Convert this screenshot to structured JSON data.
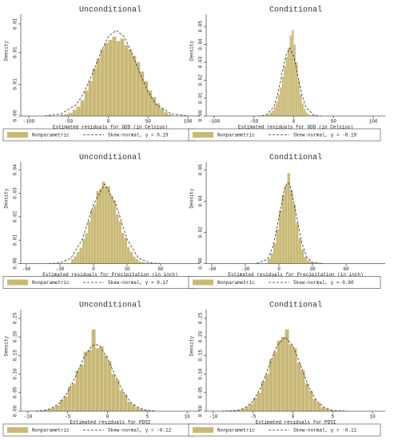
{
  "chart_data": [
    {
      "type": "histogram",
      "title": "Unconditional",
      "xlabel": "Estimated residuals for GDD (in Celsius)",
      "ylabel": "Density",
      "xlim": [
        -110,
        115
      ],
      "xticks": [
        -100,
        -50,
        0,
        50,
        100
      ],
      "ylim": [
        0,
        0.0155
      ],
      "yticks": [
        {
          "value": 0,
          "label": "0.00"
        },
        {
          "value": 0.005,
          "label": "0.01"
        },
        0.01,
        {
          "value": 0.0145,
          "label": "0.01"
        }
      ],
      "histogram": {
        "name": "Nonparametric",
        "color": "#c9b978",
        "bins": [
          -60,
          -55,
          -50,
          -45,
          -40,
          -35,
          -30,
          -25,
          -20,
          -15,
          -10,
          -5,
          0,
          5,
          10,
          15,
          20,
          25,
          30,
          35,
          40,
          45,
          50,
          55,
          60,
          65,
          70,
          75,
          80
        ],
        "values": [
          0.0002,
          0.0003,
          0.0005,
          0.001,
          0.0015,
          0.0025,
          0.004,
          0.0055,
          0.0075,
          0.009,
          0.0105,
          0.0115,
          0.012,
          0.0125,
          0.0118,
          0.0122,
          0.0112,
          0.0105,
          0.0095,
          0.0085,
          0.007,
          0.0055,
          0.004,
          0.003,
          0.002,
          0.0012,
          0.0006,
          0.0003
        ]
      },
      "curve": {
        "name": "Skew-normal, γ = 0.19",
        "color": "#333333",
        "x": [
          -80,
          -60,
          -40,
          -30,
          -20,
          -10,
          0,
          10,
          20,
          30,
          40,
          50,
          60,
          80,
          100
        ],
        "values": [
          2e-05,
          0.0003,
          0.0018,
          0.0038,
          0.0066,
          0.0098,
          0.0125,
          0.0135,
          0.0125,
          0.0098,
          0.0066,
          0.0038,
          0.0018,
          0.0003,
          2e-05
        ]
      }
    },
    {
      "type": "histogram",
      "title": "Conditional",
      "xlabel": "Estimated residuals for GDD (in Celsius)",
      "ylabel": "Density",
      "xlim": [
        -110,
        115
      ],
      "xticks": [
        -100,
        -50,
        0,
        50,
        100
      ],
      "ylim": [
        0,
        0.055
      ],
      "yticks": [
        {
          "value": 0,
          "label": "0.00"
        },
        0.01,
        0.02,
        0.03,
        0.04,
        0.05
      ],
      "histogram": {
        "name": "Nonparametric",
        "color": "#c9b978",
        "bins": [
          -35,
          -32.5,
          -30,
          -27.5,
          -25,
          -22.5,
          -20,
          -17.5,
          -15,
          -12.5,
          -10,
          -7.5,
          -5,
          -2.5,
          0,
          2.5,
          5,
          7.5,
          10,
          12.5,
          15,
          17.5,
          20,
          22.5,
          25
        ],
        "values": [
          0.0005,
          0.001,
          0.002,
          0.003,
          0.005,
          0.008,
          0.012,
          0.016,
          0.022,
          0.028,
          0.033,
          0.038,
          0.045,
          0.048,
          0.04,
          0.03,
          0.02,
          0.012,
          0.007,
          0.004,
          0.002,
          0.001,
          0.0005,
          0.0003
        ]
      },
      "curve": {
        "name": "Skew-normal, γ = -0.19",
        "color": "#333333",
        "x": [
          -45,
          -35,
          -25,
          -20,
          -15,
          -10,
          -5,
          0,
          5,
          10,
          15,
          25,
          35
        ],
        "values": [
          1e-05,
          0.0004,
          0.0051,
          0.0123,
          0.023,
          0.0335,
          0.038,
          0.0335,
          0.023,
          0.0123,
          0.0051,
          0.0004,
          1e-05
        ]
      }
    },
    {
      "type": "histogram",
      "title": "Unconditional",
      "xlabel": "Estimated residuals for Precipitation (in inch)",
      "ylabel": "Density",
      "xlim": [
        -65,
        95
      ],
      "xticks": [
        -60,
        -30,
        0,
        30,
        60
      ],
      "ylim": [
        0,
        0.042
      ],
      "yticks": [
        {
          "value": 0,
          "label": "0.00"
        },
        0.01,
        0.02,
        0.03,
        0.04
      ],
      "histogram": {
        "name": "Nonparametric",
        "color": "#c9b978",
        "bins": [
          -20,
          -17.5,
          -15,
          -12.5,
          -10,
          -7.5,
          -5,
          -2.5,
          0,
          2.5,
          5,
          7.5,
          10,
          12.5,
          15,
          17.5,
          20,
          22.5,
          25,
          27.5,
          30,
          32.5,
          35,
          37.5,
          40,
          42.5,
          45,
          47.5,
          50
        ],
        "values": [
          0.0019,
          0.0031,
          0.005,
          0.0068,
          0.0105,
          0.013,
          0.018,
          0.023,
          0.025,
          0.031,
          0.032,
          0.035,
          0.033,
          0.033,
          0.029,
          0.027,
          0.021,
          0.018,
          0.013,
          0.011,
          0.007,
          0.005,
          0.003,
          0.002,
          0.001,
          0.0007,
          0.0004,
          0.0002
        ]
      },
      "curve": {
        "name": "Skew-normal, γ = 0.17",
        "color": "#333333",
        "x": [
          -40,
          -30,
          -20,
          -10,
          0,
          10,
          20,
          30,
          40,
          50,
          60
        ],
        "values": [
          2e-05,
          0.0003,
          0.0024,
          0.0104,
          0.0253,
          0.034,
          0.0253,
          0.0104,
          0.0024,
          0.0003,
          2e-05
        ]
      }
    },
    {
      "type": "histogram",
      "title": "Conditional",
      "xlabel": "Estimated residuals for Precipitation (in inch)",
      "ylabel": "Density",
      "xlim": [
        -65,
        95
      ],
      "xticks": [
        -60,
        -30,
        0,
        30,
        60
      ],
      "ylim": [
        0,
        0.063
      ],
      "yticks": [
        {
          "value": 0,
          "label": "0.00"
        },
        0.02,
        0.04,
        0.06
      ],
      "histogram": {
        "name": "Nonparametric",
        "color": "#c9b978",
        "bins": [
          -10,
          -7.5,
          -5,
          -2.5,
          0,
          2.5,
          5,
          7.5,
          10,
          12.5,
          15,
          17.5,
          20,
          22.5,
          25,
          27.5,
          30,
          32.5,
          35,
          37.5,
          40
        ],
        "values": [
          0.003,
          0.0067,
          0.013,
          0.022,
          0.034,
          0.044,
          0.05,
          0.058,
          0.047,
          0.038,
          0.026,
          0.016,
          0.009,
          0.0042,
          0.002,
          0.0012,
          0.0007,
          0.0004,
          0.0002,
          0.0001
        ]
      },
      "curve": {
        "name": "Skew-normal, γ = 0.60",
        "color": "#333333",
        "x": [
          -20,
          -10,
          -5,
          0,
          5,
          8,
          10,
          15,
          20,
          25,
          30,
          40
        ],
        "values": [
          5e-05,
          0.0029,
          0.0116,
          0.0295,
          0.048,
          0.052,
          0.05,
          0.0336,
          0.0144,
          0.004,
          0.0007,
          1e-05
        ]
      }
    },
    {
      "type": "histogram",
      "title": "Unconditional",
      "xlabel": "Estimated residuals for PDSI",
      "ylabel": "Density",
      "xlim": [
        -10.9,
        11.6
      ],
      "xticks": [
        -10,
        -5,
        0,
        5,
        10
      ],
      "ylim": [
        0,
        0.265
      ],
      "yticks": [
        {
          "value": 0,
          "label": "0.00"
        },
        0.05,
        {
          "value": 0.1,
          "label": "0.10"
        },
        0.15,
        {
          "value": 0.2,
          "label": "0.20"
        },
        0.25
      ],
      "histogram": {
        "name": "Nonparametric",
        "color": "#c9b978",
        "bins": [
          -8,
          -7.5,
          -7,
          -6.5,
          -6,
          -5.5,
          -5,
          -4.5,
          -4,
          -3.5,
          -3,
          -2.5,
          -2,
          -1.5,
          -1,
          -0.5,
          0,
          0.5,
          1,
          1.5,
          2,
          2.5,
          3,
          3.5,
          4,
          4.5,
          5,
          5.5,
          6
        ],
        "values": [
          0.003,
          0.006,
          0.011,
          0.016,
          0.03,
          0.04,
          0.065,
          0.075,
          0.11,
          0.125,
          0.16,
          0.165,
          0.22,
          0.17,
          0.175,
          0.15,
          0.135,
          0.1,
          0.085,
          0.055,
          0.045,
          0.025,
          0.018,
          0.01,
          0.006,
          0.003,
          0.0015,
          0.0008
        ]
      },
      "curve": {
        "name": "Skew-normal, γ = -0.12",
        "color": "#333333",
        "x": [
          -9,
          -8,
          -7,
          -6,
          -5,
          -4,
          -3,
          -2,
          -1.5,
          -1,
          0,
          1,
          2,
          3,
          4,
          5,
          6
        ],
        "values": [
          0.0005,
          0.0023,
          0.0079,
          0.0222,
          0.0508,
          0.0943,
          0.1427,
          0.1754,
          0.18,
          0.1754,
          0.1427,
          0.0943,
          0.0508,
          0.0222,
          0.0079,
          0.0023,
          0.0005
        ]
      }
    },
    {
      "type": "histogram",
      "title": "Conditional",
      "xlabel": "Estimated residuals for PDSI",
      "ylabel": "Density",
      "xlim": [
        -10.9,
        11.6
      ],
      "xticks": [
        -10,
        -5,
        0,
        5,
        10
      ],
      "ylim": [
        0,
        0.265
      ],
      "yticks": [
        {
          "value": 0,
          "label": "0.00"
        },
        0.05,
        {
          "value": 0.1,
          "label": "0.10"
        },
        0.15,
        {
          "value": 0.2,
          "label": "0.20"
        },
        0.25
      ],
      "histogram": {
        "name": "Nonparametric",
        "color": "#c9b978",
        "bins": [
          -8,
          -7.5,
          -7,
          -6.5,
          -6,
          -5.5,
          -5,
          -4.5,
          -4,
          -3.5,
          -3,
          -2.5,
          -2,
          -1.5,
          -1,
          -0.5,
          0,
          0.5,
          1,
          1.5,
          2,
          2.5,
          3,
          3.5,
          4,
          4.5,
          5,
          5.5,
          6
        ],
        "values": [
          0.0007,
          0.0015,
          0.003,
          0.007,
          0.012,
          0.02,
          0.036,
          0.05,
          0.08,
          0.1,
          0.14,
          0.16,
          0.19,
          0.2,
          0.22,
          0.18,
          0.17,
          0.13,
          0.11,
          0.075,
          0.055,
          0.033,
          0.022,
          0.011,
          0.007,
          0.003,
          0.0015,
          0.0007
        ]
      },
      "curve": {
        "name": "Skew-normal, γ = -0.11",
        "color": "#333333",
        "x": [
          -9,
          -7,
          -6,
          -5,
          -4,
          -3,
          -2,
          -1,
          0,
          1,
          2,
          3,
          4,
          5,
          7
        ],
        "values": [
          7e-05,
          0.0022,
          0.0088,
          0.0271,
          0.0649,
          0.1213,
          0.1765,
          0.2,
          0.1765,
          0.1213,
          0.0649,
          0.0271,
          0.0088,
          0.0022,
          7e-05
        ]
      }
    }
  ]
}
